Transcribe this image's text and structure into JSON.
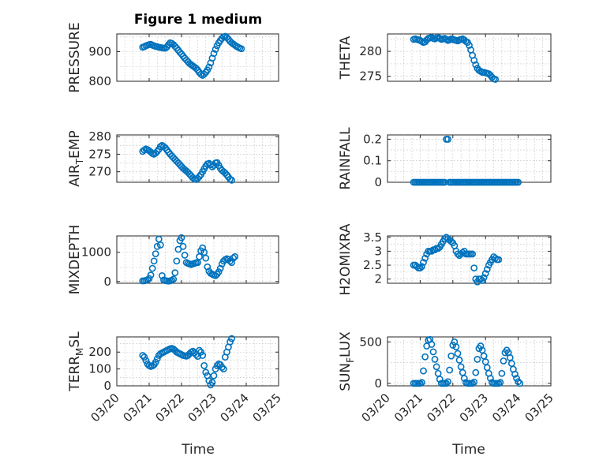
{
  "figure": {
    "title": "Figure 1 medium",
    "marker_color": "#0072BD",
    "x_axis_label": "Time",
    "x_tick_labels": [
      "03/20",
      "03/21",
      "03/22",
      "03/23",
      "03/24",
      "03/25"
    ]
  },
  "chart_data": [
    {
      "type": "scatter",
      "name": "PRESSURE",
      "ylabel": "PRESSURE",
      "xlim": [
        20.0,
        25.0
      ],
      "ylim": [
        800,
        960
      ],
      "yticks": [
        800,
        900
      ],
      "grid": "on",
      "show_x_ticklabels": false,
      "x_start": 20.8,
      "x_step": 0.05,
      "y": [
        915,
        917,
        920,
        922,
        924,
        925,
        922,
        920,
        918,
        917,
        915,
        914,
        913,
        912,
        912,
        916,
        924,
        930,
        928,
        924,
        918,
        912,
        905,
        898,
        892,
        885,
        878,
        872,
        866,
        860,
        856,
        852,
        848,
        844,
        838,
        830,
        824,
        820,
        824,
        830,
        838,
        848,
        862,
        878,
        894,
        908,
        920,
        930,
        938,
        945,
        950,
        952,
        948,
        942,
        935,
        930,
        926,
        922,
        918,
        915,
        912,
        910
      ]
    },
    {
      "type": "scatter",
      "name": "THETA",
      "ylabel": "THETA",
      "xlim": [
        20.0,
        25.0
      ],
      "ylim": [
        274,
        283.5
      ],
      "yticks": [
        275,
        280
      ],
      "grid": "on",
      "show_x_ticklabels": false,
      "x_start": 20.8,
      "x_step": 0.05,
      "y": [
        282.4,
        282.5,
        282.4,
        282.3,
        282.2,
        282.0,
        281.8,
        281.9,
        282.3,
        282.6,
        282.7,
        282.8,
        282.6,
        282.5,
        282.7,
        282.8,
        282.6,
        282.4,
        282.5,
        282.6,
        282.4,
        282.2,
        282.3,
        282.5,
        282.4,
        282.3,
        282.2,
        282.1,
        282.3,
        282.4,
        282.5,
        282.3,
        282.0,
        281.8,
        281.2,
        280.3,
        279.2,
        278.2,
        277.3,
        276.6,
        276.2,
        276.0,
        275.8,
        275.8,
        275.7,
        275.6,
        275.5,
        275.2,
        274.8,
        274.5,
        274.4
      ]
    },
    {
      "type": "scatter",
      "name": "AIR_TEMP",
      "ylabel": "AIR_TEMP",
      "xlim": [
        20.0,
        25.0
      ],
      "ylim": [
        267,
        280.5
      ],
      "yticks": [
        270,
        275,
        280
      ],
      "grid": "on",
      "show_x_ticklabels": false,
      "x_start": 20.8,
      "x_step": 0.05,
      "y": [
        275.8,
        276.2,
        276.5,
        276.3,
        276.0,
        275.6,
        275.2,
        275.0,
        275.3,
        275.8,
        276.4,
        277.2,
        277.5,
        277.2,
        276.8,
        276.2,
        275.6,
        275.0,
        274.5,
        274.0,
        273.5,
        273.0,
        272.5,
        272.0,
        271.5,
        271.0,
        270.6,
        270.2,
        269.8,
        269.3,
        268.8,
        268.3,
        267.9,
        267.8,
        268.1,
        268.6,
        269.2,
        270.0,
        270.8,
        271.6,
        272.2,
        272.4,
        272.0,
        271.4,
        271.8,
        272.5,
        272.6,
        271.8,
        271.0,
        270.4,
        270.0,
        269.6,
        269.1,
        268.5,
        267.9,
        267.6
      ]
    },
    {
      "type": "scatter",
      "name": "RAINFALL",
      "ylabel": "RAINFALL",
      "xlim": [
        20.0,
        25.0
      ],
      "ylim": [
        0,
        0.22
      ],
      "yticks": [
        0,
        0.1,
        0.2
      ],
      "grid": "on",
      "show_x_ticklabels": false,
      "x_start": 20.8,
      "x_step": 0.05,
      "y": [
        0,
        0,
        0,
        0,
        0,
        0,
        0,
        0,
        0,
        0,
        0,
        0,
        0,
        0,
        0,
        0,
        0,
        0,
        0,
        0,
        0.2,
        0.2,
        0,
        0,
        0,
        0,
        0,
        0,
        0,
        0,
        0,
        0,
        0,
        0,
        0,
        0,
        0,
        0,
        0,
        0,
        0,
        0,
        0,
        0,
        0,
        0,
        0,
        0,
        0,
        0,
        0,
        0,
        0,
        0,
        0,
        0,
        0,
        0,
        0,
        0,
        0,
        0,
        0,
        0,
        0
      ]
    },
    {
      "type": "scatter",
      "name": "MIXDEPTH",
      "ylabel": "MIXDEPTH",
      "xlim": [
        20.0,
        25.0
      ],
      "ylim": [
        -60,
        1560
      ],
      "yticks": [
        0,
        1000
      ],
      "grid": "on",
      "show_x_ticklabels": false,
      "x_start": 20.8,
      "x_step": 0.05,
      "y": [
        20,
        25,
        40,
        60,
        100,
        220,
        450,
        700,
        950,
        1200,
        1450,
        1250,
        200,
        50,
        30,
        20,
        15,
        25,
        40,
        80,
        300,
        700,
        1100,
        1400,
        1500,
        1200,
        900,
        650,
        620,
        600,
        580,
        600,
        620,
        640,
        650,
        850,
        1050,
        1150,
        1000,
        800,
        500,
        350,
        280,
        250,
        220,
        200,
        250,
        330,
        450,
        600,
        700,
        750,
        780,
        760,
        700,
        650,
        800,
        850
      ]
    },
    {
      "type": "scatter",
      "name": "H2OMIXRA",
      "ylabel": "H2OMIXRA",
      "xlim": [
        20.0,
        25.0
      ],
      "ylim": [
        1.85,
        3.55
      ],
      "yticks": [
        2,
        2.5,
        3,
        3.5
      ],
      "grid": "on",
      "show_x_ticklabels": false,
      "x_start": 20.8,
      "x_step": 0.05,
      "y": [
        2.5,
        2.5,
        2.45,
        2.4,
        2.4,
        2.45,
        2.6,
        2.75,
        2.9,
        3.0,
        3.0,
        3.0,
        3.05,
        3.05,
        3.1,
        3.1,
        3.15,
        3.25,
        3.35,
        3.45,
        3.5,
        3.45,
        3.4,
        3.35,
        3.3,
        3.2,
        3.0,
        2.9,
        2.85,
        2.9,
        2.95,
        3.0,
        2.9,
        2.9,
        2.9,
        2.9,
        2.9,
        2.4,
        2.0,
        1.9,
        2.0,
        2.0,
        1.95,
        2.05,
        2.2,
        2.35,
        2.5,
        2.6,
        2.7,
        2.8,
        2.75,
        2.7,
        2.7
      ]
    },
    {
      "type": "scatter",
      "name": "TERR_MSL",
      "ylabel": "TERR_MSL",
      "xlim": [
        20.0,
        25.0
      ],
      "ylim": [
        0,
        290
      ],
      "yticks": [
        0,
        100,
        200
      ],
      "grid": "on",
      "show_x_ticklabels": true,
      "x_start": 20.8,
      "x_step": 0.05,
      "y": [
        180,
        170,
        150,
        130,
        120,
        115,
        118,
        125,
        140,
        160,
        180,
        190,
        195,
        200,
        205,
        210,
        215,
        220,
        222,
        218,
        210,
        200,
        195,
        190,
        185,
        180,
        178,
        176,
        180,
        190,
        200,
        205,
        195,
        185,
        175,
        210,
        200,
        180,
        120,
        80,
        60,
        30,
        5,
        20,
        60,
        100,
        120,
        130,
        125,
        110,
        100,
        170,
        200,
        230,
        260,
        280
      ]
    },
    {
      "type": "scatter",
      "name": "SUN_FLUX",
      "ylabel": "SUN_FLUX",
      "xlim": [
        20.0,
        25.0
      ],
      "ylim": [
        -30,
        560
      ],
      "yticks": [
        0,
        500
      ],
      "grid": "on",
      "show_x_ticklabels": true,
      "x_start": 20.8,
      "x_step": 0.05,
      "y": [
        0,
        0,
        0,
        0,
        0,
        10,
        150,
        320,
        450,
        520,
        530,
        470,
        380,
        290,
        200,
        120,
        50,
        0,
        0,
        0,
        0,
        20,
        160,
        330,
        460,
        500,
        440,
        360,
        280,
        200,
        130,
        60,
        10,
        0,
        0,
        0,
        0,
        15,
        130,
        290,
        420,
        450,
        400,
        330,
        260,
        190,
        120,
        60,
        10,
        0,
        0,
        0,
        0,
        10,
        120,
        270,
        370,
        400,
        370,
        310,
        240,
        170,
        110,
        60,
        20,
        0
      ]
    }
  ]
}
